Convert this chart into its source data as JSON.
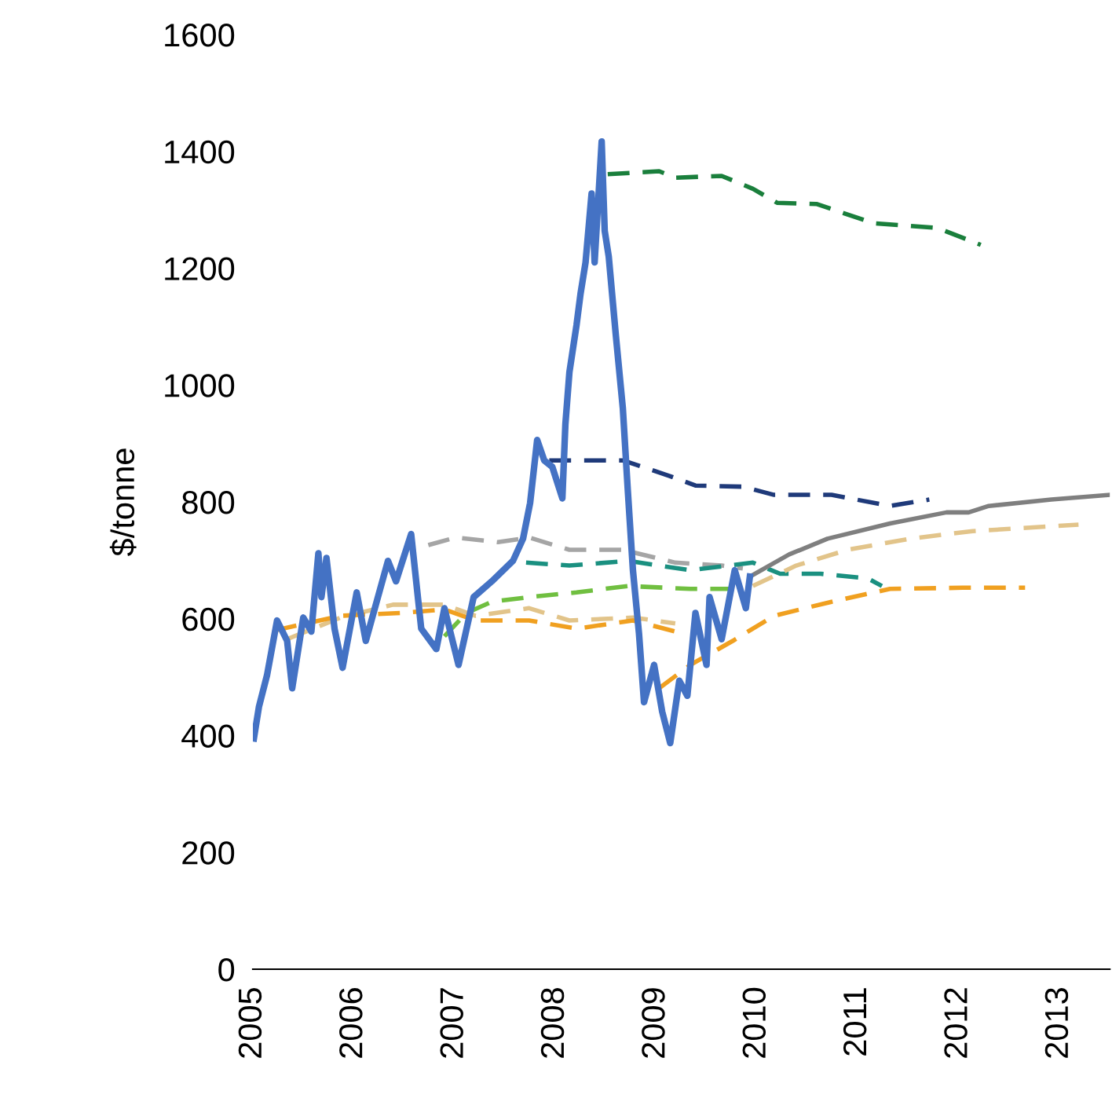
{
  "chart_data": {
    "type": "line",
    "ylabel": "$/tonne",
    "xlim": [
      2005,
      2013.5
    ],
    "xticks": [
      2005,
      2006,
      2007,
      2008,
      2009,
      2010,
      2011,
      2012,
      2013
    ],
    "ylim": [
      0,
      1600
    ],
    "yticks": [
      0,
      200,
      400,
      600,
      800,
      1000,
      1200,
      1400,
      1600
    ],
    "grid": false,
    "series": [
      {
        "color": "#1a7f3c",
        "line_style": "dashed",
        "x": [
          2008.52,
          2009.03,
          2009.19,
          2009.65,
          2009.96,
          2010.2,
          2010.59,
          2011.16,
          2011.79,
          2012.22
        ],
        "values": [
          1361,
          1366,
          1355,
          1358,
          1336,
          1312,
          1310,
          1277,
          1269,
          1240
        ]
      },
      {
        "color": "#1f3a7a",
        "line_style": "dashed",
        "x": [
          2007.94,
          2008.67,
          2009.14,
          2009.39,
          2009.86,
          2010.17,
          2010.74,
          2011.32,
          2011.71
        ],
        "values": [
          871,
          871,
          844,
          828,
          826,
          812,
          812,
          793,
          804
        ]
      },
      {
        "color": "#a5a5a5",
        "line_style": "dashed",
        "x": [
          2006.74,
          2007.01,
          2007.43,
          2007.74,
          2008.14,
          2008.67,
          2009.19,
          2009.65,
          2009.86
        ],
        "values": [
          726,
          739,
          731,
          739,
          718,
          718,
          696,
          691,
          686
        ]
      },
      {
        "color": "#1a9080",
        "line_style": "dashed",
        "x": [
          2007.71,
          2008.14,
          2008.72,
          2009.34,
          2009.96,
          2010.23,
          2010.63,
          2011.1,
          2011.24
        ],
        "values": [
          696,
          691,
          699,
          683,
          696,
          677,
          677,
          669,
          656
        ]
      },
      {
        "color": "#70bf40",
        "line_style": "dashed",
        "x": [
          2006.9,
          2007.12,
          2007.37,
          2007.74,
          2008.21,
          2008.72,
          2009.34,
          2009.76
        ],
        "values": [
          570,
          610,
          629,
          637,
          645,
          656,
          651,
          651
        ]
      },
      {
        "color": "#e2c48a",
        "line_style": "dashed",
        "x": [
          2005.34,
          2005.87,
          2006.39,
          2006.9,
          2007.21,
          2007.74,
          2008.14,
          2008.77,
          2009.19
        ],
        "values": [
          565,
          602,
          624,
          624,
          605,
          618,
          597,
          602,
          592
        ]
      },
      {
        "color": "#e2c48a",
        "line_style": "dashed",
        "x": [
          2009.96,
          2010.39,
          2010.9,
          2011.52,
          2012.14,
          2013.19
        ],
        "values": [
          656,
          691,
          718,
          737,
          750,
          761
        ]
      },
      {
        "color": "#f0a020",
        "line_style": "dashed",
        "x": [
          2005.22,
          2005.87,
          2006.49,
          2006.9,
          2007.21,
          2007.74,
          2008.21,
          2008.77,
          2009.19
        ],
        "values": [
          580,
          605,
          610,
          616,
          597,
          597,
          583,
          597,
          578
        ]
      },
      {
        "color": "#f0a020",
        "line_style": "dashed",
        "x": [
          2009.03,
          2009.34,
          2009.76,
          2010.17,
          2010.74,
          2011.32,
          2012.04,
          2012.66
        ],
        "values": [
          481,
          521,
          562,
          605,
          629,
          651,
          653,
          653
        ]
      },
      {
        "color": "#7f7f7f",
        "line_style": "solid",
        "x": [
          2009.93,
          2010.32,
          2010.7,
          2011.32,
          2011.88,
          2012.1,
          2012.3,
          2012.92,
          2013.5
        ],
        "values": [
          672,
          710,
          737,
          763,
          782,
          782,
          793,
          804,
          812
        ]
      },
      {
        "color": "#4472c4",
        "line_style": "solid",
        "x": [
          2005.01,
          2005.06,
          2005.14,
          2005.24,
          2005.34,
          2005.39,
          2005.5,
          2005.58,
          2005.65,
          2005.68,
          2005.73,
          2005.81,
          2005.89,
          2006.03,
          2006.12,
          2006.34,
          2006.42,
          2006.57,
          2006.67,
          2006.82,
          2006.9,
          2007.04,
          2007.19,
          2007.37,
          2007.58,
          2007.68,
          2007.75,
          2007.82,
          2007.89,
          2007.97,
          2008.07,
          2008.1,
          2008.14,
          2008.21,
          2008.25,
          2008.3,
          2008.36,
          2008.39,
          2008.46,
          2008.49,
          2008.53,
          2008.6,
          2008.67,
          2008.72,
          2008.77,
          2008.83,
          2008.88,
          2008.98,
          2009.06,
          2009.14,
          2009.23,
          2009.31,
          2009.39,
          2009.5,
          2009.53,
          2009.65,
          2009.78,
          2009.89,
          2009.93
        ],
        "values": [
          395,
          449,
          503,
          597,
          562,
          481,
          602,
          578,
          712,
          637,
          704,
          583,
          516,
          645,
          562,
          699,
          664,
          745,
          583,
          548,
          618,
          521,
          637,
          664,
          699,
          737,
          798,
          906,
          871,
          860,
          806,
          933,
          1022,
          1102,
          1156,
          1210,
          1328,
          1210,
          1417,
          1264,
          1220,
          1086,
          960,
          817,
          683,
          575,
          457,
          521,
          441,
          387,
          494,
          468,
          610,
          521,
          637,
          565,
          683,
          618,
          672
        ]
      }
    ]
  }
}
